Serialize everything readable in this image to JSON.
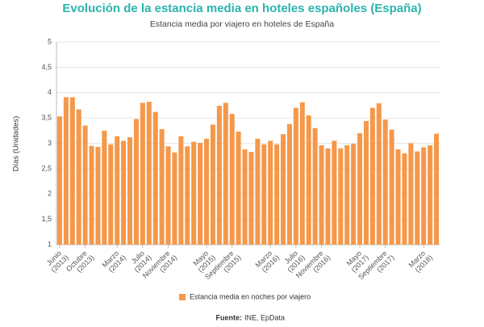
{
  "chart_data": {
    "type": "bar",
    "title": "Evolución de la estancia media en hoteles españoles (España)",
    "subtitle": "Estancia media por viajero en hoteles de España",
    "y_label": "Días (Unidades)",
    "source_label": "Fuente:",
    "source": "INE, EpData",
    "categories": [
      "Junio (2013)",
      null,
      null,
      null,
      "Octubre (2013)",
      null,
      null,
      null,
      null,
      "Marzo (2014)",
      null,
      null,
      null,
      "Julio (2014)",
      null,
      null,
      null,
      "Noviembre (2014)",
      null,
      null,
      null,
      null,
      null,
      "Mayo (2015)",
      null,
      null,
      null,
      "Septiembre (2015)",
      null,
      null,
      null,
      null,
      null,
      "Marzo (2016)",
      null,
      null,
      null,
      "Julio (2016)",
      null,
      null,
      null,
      "Noviembre (2016)",
      null,
      null,
      null,
      null,
      null,
      "Mayo (2017)",
      null,
      null,
      null,
      "Septiembre (2017)",
      null,
      null,
      null,
      null,
      null,
      "Marzo (2018)",
      null,
      null
    ],
    "series": [
      {
        "name": "Estancia media en noches por viajero",
        "color": "#f5984a",
        "values": [
          3.53,
          3.91,
          3.91,
          3.67,
          3.35,
          2.95,
          2.93,
          3.25,
          2.98,
          3.14,
          3.05,
          3.12,
          3.48,
          3.8,
          3.82,
          3.62,
          3.28,
          2.94,
          2.82,
          3.14,
          2.94,
          3.03,
          3.01,
          3.09,
          3.37,
          3.74,
          3.8,
          3.58,
          3.23,
          2.88,
          2.83,
          3.09,
          2.98,
          3.05,
          2.98,
          3.18,
          3.38,
          3.7,
          3.81,
          3.55,
          3.3,
          2.96,
          2.9,
          3.05,
          2.9,
          2.96,
          2.99,
          3.2,
          3.44,
          3.7,
          3.79,
          3.47,
          3.27,
          2.88,
          2.8,
          3.0,
          2.84,
          2.92,
          2.96,
          3.19
        ]
      }
    ],
    "ylim": [
      1,
      5
    ],
    "yticks": [
      1,
      {
        "value": 1.5,
        "label": "1,5"
      },
      2,
      {
        "value": 2.5,
        "label": "2,5"
      },
      3,
      {
        "value": 3.5,
        "label": "3,5"
      },
      4,
      {
        "value": 4.5,
        "label": "4,5"
      },
      5
    ],
    "grid": true,
    "legend": "bottom"
  }
}
